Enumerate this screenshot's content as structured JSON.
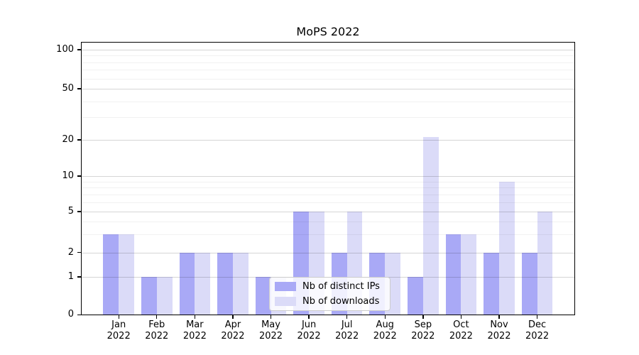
{
  "chart_data": {
    "type": "bar",
    "title": "MoPS 2022",
    "x": {
      "months": [
        "Jan",
        "Feb",
        "Mar",
        "Apr",
        "May",
        "Jun",
        "Jul",
        "Aug",
        "Sep",
        "Oct",
        "Nov",
        "Dec"
      ],
      "year": "2022"
    },
    "series": [
      {
        "name": "Nb of distinct IPs",
        "color": "#a9a9f6",
        "values": [
          3,
          1,
          2,
          2,
          1,
          5,
          2,
          2,
          1,
          3,
          2,
          2
        ]
      },
      {
        "name": "Nb of downloads",
        "color": "#dbdbf8",
        "values": [
          3,
          1,
          2,
          2,
          1,
          5,
          5,
          2,
          21,
          3,
          9,
          5
        ]
      }
    ],
    "y_axis": {
      "scale": "log-like (linear 0-1 segment, logarithmic above 1)",
      "major_ticks": [
        0,
        1,
        2,
        5,
        10,
        20,
        50,
        100
      ],
      "minor_ticks": [
        3,
        4,
        6,
        7,
        8,
        9,
        30,
        40,
        60,
        70,
        80,
        90
      ],
      "range": [
        0,
        113
      ]
    },
    "xlabel": "",
    "ylabel": "",
    "grid": "horizontal major and minor gridlines",
    "legend": {
      "position": "lower center inside plot",
      "items": [
        "Nb of distinct IPs",
        "Nb of downloads"
      ]
    }
  },
  "colors": {
    "bar_dark": "#a9a9f6",
    "bar_light": "#dbdbf8",
    "grid_major": "#d6d6d6",
    "grid_minor": "#f0f0f0",
    "spine": "#000000",
    "background": "#ffffff"
  }
}
